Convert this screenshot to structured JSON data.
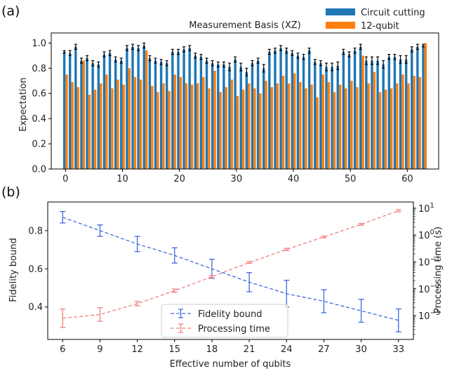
{
  "panel_labels": [
    "(a)",
    "(b)"
  ],
  "colors": {
    "circuit_cutting": "#1f77b4",
    "twelve_qubit": "#ff7f0e",
    "fidelity": "#4169e1",
    "processing": "#f08080",
    "errorbar_a": "#000000"
  },
  "chart_data": [
    {
      "type": "bar",
      "title": "Measurement Basis (XZ)",
      "xlabel": "",
      "ylabel": "Expectation",
      "xlim": [
        -2.5,
        65.5
      ],
      "ylim": [
        0.0,
        1.08
      ],
      "xticks": [
        0,
        10,
        20,
        30,
        40,
        50,
        60
      ],
      "xtick_labels": [
        "0",
        "10",
        "20",
        "30",
        "40",
        "50",
        "60"
      ],
      "yticks": [
        0.0,
        0.2,
        0.4,
        0.6,
        0.8,
        1.0
      ],
      "ytick_labels": [
        "0.0",
        "0.2",
        "0.4",
        "0.6",
        "0.8",
        "1.0"
      ],
      "grid": false,
      "legend_position": "top-right",
      "series": [
        {
          "name": "Circuit cutting",
          "values": [
            0.93,
            0.92,
            0.97,
            0.86,
            0.88,
            0.84,
            0.83,
            0.91,
            0.92,
            0.87,
            0.86,
            0.96,
            0.97,
            0.96,
            0.98,
            0.88,
            0.86,
            0.85,
            0.84,
            0.93,
            0.93,
            0.95,
            0.96,
            0.9,
            0.89,
            0.86,
            0.84,
            0.83,
            0.83,
            0.81,
            0.87,
            0.81,
            0.77,
            0.84,
            0.86,
            0.8,
            0.93,
            0.94,
            0.96,
            0.94,
            0.92,
            0.9,
            0.89,
            0.94,
            0.85,
            0.84,
            0.81,
            0.81,
            0.82,
            0.93,
            0.91,
            0.94,
            0.97,
            0.86,
            0.86,
            0.86,
            0.83,
            0.89,
            0.89,
            0.87,
            0.87,
            0.95,
            0.97,
            0.98
          ],
          "errors": [
            0.01,
            0.02,
            0.02,
            0.02,
            0.02,
            0.02,
            0.02,
            0.02,
            0.02,
            0.02,
            0.02,
            0.02,
            0.02,
            0.02,
            0.02,
            0.02,
            0.02,
            0.02,
            0.02,
            0.02,
            0.02,
            0.02,
            0.02,
            0.02,
            0.02,
            0.02,
            0.02,
            0.02,
            0.02,
            0.03,
            0.02,
            0.03,
            0.03,
            0.02,
            0.02,
            0.03,
            0.02,
            0.02,
            0.02,
            0.02,
            0.02,
            0.02,
            0.02,
            0.02,
            0.02,
            0.02,
            0.03,
            0.03,
            0.03,
            0.02,
            0.02,
            0.02,
            0.02,
            0.03,
            0.03,
            0.03,
            0.03,
            0.02,
            0.02,
            0.03,
            0.03,
            0.02,
            0.02,
            0.01
          ]
        },
        {
          "name": "12-qubit",
          "values": [
            0.75,
            0.69,
            0.65,
            0.86,
            0.59,
            0.63,
            0.68,
            0.75,
            0.64,
            0.71,
            0.67,
            0.8,
            0.73,
            0.71,
            0.94,
            0.66,
            0.61,
            0.68,
            0.62,
            0.75,
            0.73,
            0.68,
            0.67,
            0.68,
            0.73,
            0.64,
            0.78,
            0.61,
            0.65,
            0.71,
            0.58,
            0.63,
            0.68,
            0.64,
            0.6,
            0.7,
            0.65,
            0.68,
            0.74,
            0.68,
            0.76,
            0.69,
            0.64,
            0.67,
            0.57,
            0.75,
            0.69,
            0.61,
            0.67,
            0.64,
            0.7,
            0.65,
            0.9,
            0.68,
            0.77,
            0.61,
            0.63,
            0.64,
            0.68,
            0.75,
            0.68,
            0.74,
            0.73,
            1.0
          ]
        }
      ]
    },
    {
      "type": "line",
      "title": "",
      "xlabel": "Effective number of qubits",
      "ylabel": "Fidelity bound",
      "y2label": "Processing time (s)",
      "x": [
        6,
        9,
        12,
        15,
        18,
        21,
        24,
        27,
        30,
        33
      ],
      "xlim": [
        4.8,
        34.2
      ],
      "ylim": [
        0.23,
        0.95
      ],
      "y2scale": "log",
      "y2lim": [
        0.00013,
        17
      ],
      "xticks": [
        6,
        9,
        12,
        15,
        18,
        21,
        24,
        27,
        30,
        33
      ],
      "xtick_labels": [
        "6",
        "9",
        "12",
        "15",
        "18",
        "21",
        "24",
        "27",
        "30",
        "33"
      ],
      "yticks": [
        0.4,
        0.6,
        0.8
      ],
      "ytick_labels": [
        "0.4",
        "0.6",
        "0.8"
      ],
      "y2ticks": [
        0.001,
        0.01,
        0.1,
        1,
        10
      ],
      "y2tick_labels": [
        [
          "10",
          "−3"
        ],
        [
          "10",
          "−2"
        ],
        [
          "10",
          "−1"
        ],
        [
          "10",
          "0"
        ],
        [
          "10",
          "1"
        ]
      ],
      "grid": false,
      "legend_position": "bottom-center",
      "series": [
        {
          "name": "Fidelity bound",
          "axis": "left",
          "values": [
            0.87,
            0.8,
            0.73,
            0.67,
            0.6,
            0.53,
            0.47,
            0.43,
            0.38,
            0.33
          ],
          "errors": [
            0.03,
            0.03,
            0.04,
            0.04,
            0.05,
            0.05,
            0.07,
            0.06,
            0.06,
            0.06
          ]
        },
        {
          "name": "Processing time",
          "axis": "right",
          "values": [
            0.0008,
            0.0011,
            0.0028,
            0.0085,
            0.028,
            0.095,
            0.29,
            0.85,
            2.5,
            8.0
          ],
          "err_factor": [
            2.2,
            1.8,
            1.2,
            1.15,
            1.1,
            1.08,
            1.1,
            1.08,
            1.08,
            1.1
          ]
        }
      ]
    }
  ]
}
